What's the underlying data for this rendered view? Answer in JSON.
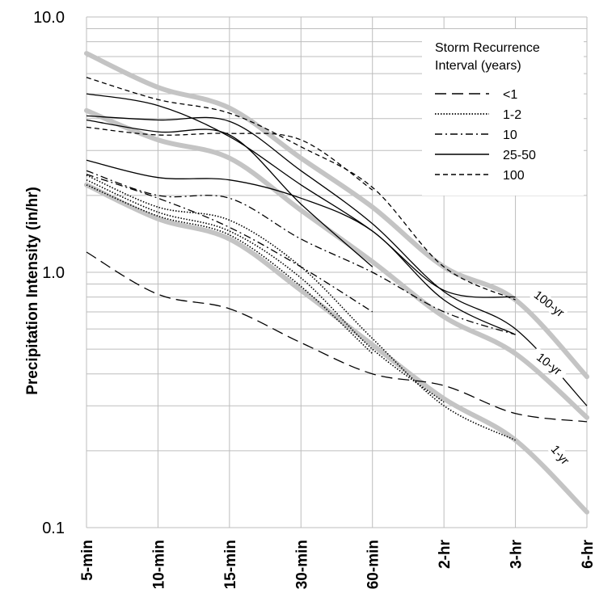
{
  "chart_data": {
    "type": "line",
    "ylabel": "Precipitation Intensity (in/hr)",
    "xlabel": "",
    "y_scale": "log",
    "ylim": [
      0.1,
      10.0
    ],
    "y_ticks": [
      "0.1",
      "1.0",
      "10.0"
    ],
    "categories": [
      "5-min",
      "10-min",
      "15-min",
      "30-min",
      "60-min",
      "2-hr",
      "3-hr",
      "6-hr"
    ],
    "grid": true,
    "legend": {
      "title_line1": "Storm Recurrence",
      "title_line2": "Interval (years)",
      "placement": "top-right",
      "entries": [
        {
          "label": "<1",
          "style": "longdash"
        },
        {
          "label": "1-2",
          "style": "dotted"
        },
        {
          "label": "10",
          "style": "dashdot"
        },
        {
          "label": "25-50",
          "style": "solid"
        },
        {
          "label": "100",
          "style": "shortdash"
        }
      ]
    },
    "envelopes": [
      {
        "label": "100-yr",
        "values": [
          7.2,
          5.3,
          4.4,
          2.8,
          1.8,
          1.05,
          0.78,
          0.39
        ]
      },
      {
        "label": "10-yr",
        "values": [
          4.3,
          3.3,
          2.8,
          1.75,
          1.1,
          0.67,
          0.48,
          0.27
        ]
      },
      {
        "label": "1-yr",
        "values": [
          2.2,
          1.62,
          1.35,
          0.85,
          0.52,
          0.32,
          0.22,
          0.115
        ]
      }
    ],
    "series": [
      {
        "group": "<1",
        "style": "longdash",
        "values": [
          1.2,
          0.82,
          0.72,
          0.53,
          0.4,
          0.36,
          0.28,
          0.26
        ]
      },
      {
        "group": "1-2",
        "style": "dotted",
        "values": [
          2.4,
          1.8,
          1.6,
          1.05,
          0.55,
          0.3,
          0.22,
          null
        ]
      },
      {
        "group": "1-2",
        "style": "dotted",
        "values": [
          2.3,
          1.72,
          1.45,
          0.95,
          0.5,
          0.31,
          null,
          null
        ]
      },
      {
        "group": "1-2",
        "style": "dotted",
        "values": [
          2.2,
          1.66,
          1.4,
          0.88,
          0.48,
          null,
          null,
          null
        ]
      },
      {
        "group": "10",
        "style": "dashdot",
        "values": [
          2.5,
          2.0,
          1.95,
          1.35,
          1.0,
          0.7,
          0.57,
          null
        ]
      },
      {
        "group": "10",
        "style": "dashdot",
        "values": [
          2.42,
          1.95,
          1.5,
          1.05,
          0.7,
          null,
          null,
          null
        ]
      },
      {
        "group": "25-50",
        "style": "solid",
        "values": [
          5.0,
          4.5,
          3.4,
          2.2,
          1.45,
          0.85,
          0.8,
          null
        ]
      },
      {
        "group": "25-50",
        "style": "solid",
        "values": [
          4.1,
          3.95,
          3.9,
          2.5,
          1.55,
          0.84,
          0.6,
          0.3
        ]
      },
      {
        "group": "25-50",
        "style": "solid",
        "values": [
          3.95,
          3.55,
          3.45,
          1.85,
          1.05,
          null,
          null,
          null
        ]
      },
      {
        "group": "25-50",
        "style": "solid",
        "values": [
          2.75,
          2.35,
          2.3,
          1.95,
          1.45,
          0.78,
          0.57,
          null
        ]
      },
      {
        "group": "100",
        "style": "shortdash",
        "values": [
          5.8,
          4.75,
          4.2,
          3.1,
          2.15,
          1.05,
          0.78,
          null
        ]
      },
      {
        "group": "100",
        "style": "shortdash",
        "values": [
          3.7,
          3.45,
          3.5,
          3.3,
          2.1,
          null,
          null,
          null
        ]
      }
    ]
  }
}
